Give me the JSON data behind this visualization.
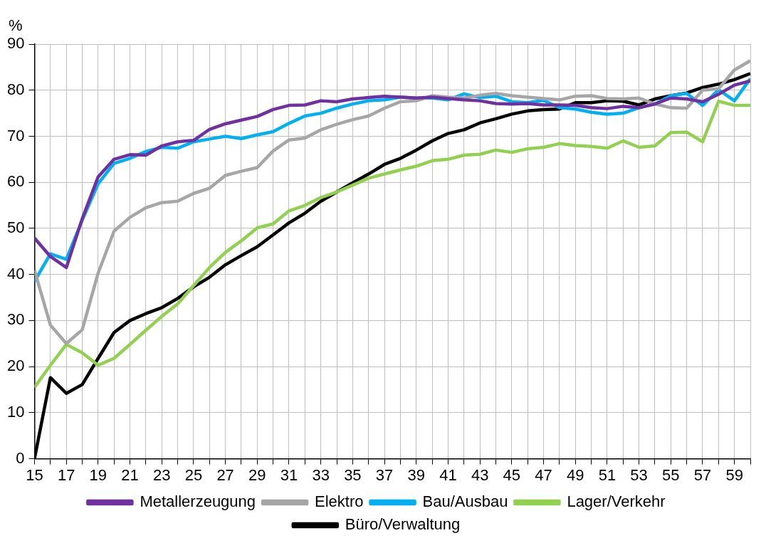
{
  "chart_data": {
    "type": "line",
    "ylabel": "%",
    "x": [
      15,
      16,
      17,
      18,
      19,
      20,
      21,
      22,
      23,
      24,
      25,
      26,
      27,
      28,
      29,
      30,
      31,
      32,
      33,
      34,
      35,
      36,
      37,
      38,
      39,
      40,
      41,
      42,
      43,
      44,
      45,
      46,
      47,
      48,
      49,
      50,
      51,
      52,
      53,
      54,
      55,
      56,
      57,
      58,
      59,
      60
    ],
    "xlim": [
      15,
      60
    ],
    "xticks": [
      15,
      {
        "value": 16,
        "label": null
      },
      17,
      {
        "value": 18,
        "label": null
      },
      19,
      {
        "value": 20,
        "label": null
      },
      21,
      {
        "value": 22,
        "label": null
      },
      23,
      {
        "value": 24,
        "label": null
      },
      25,
      {
        "value": 26,
        "label": null
      },
      27,
      {
        "value": 28,
        "label": null
      },
      29,
      {
        "value": 30,
        "label": null
      },
      31,
      {
        "value": 32,
        "label": null
      },
      33,
      {
        "value": 34,
        "label": null
      },
      35,
      {
        "value": 36,
        "label": null
      },
      37,
      {
        "value": 38,
        "label": null
      },
      39,
      {
        "value": 40,
        "label": null
      },
      41,
      {
        "value": 42,
        "label": null
      },
      43,
      {
        "value": 44,
        "label": null
      },
      45,
      {
        "value": 46,
        "label": null
      },
      47,
      {
        "value": 48,
        "label": null
      },
      49,
      {
        "value": 50,
        "label": null
      },
      51,
      {
        "value": 52,
        "label": null
      },
      53,
      {
        "value": 54,
        "label": null
      },
      55,
      {
        "value": 56,
        "label": null
      },
      57,
      {
        "value": 58,
        "label": null
      },
      59,
      {
        "value": 60,
        "label": null
      }
    ],
    "ylim": [
      0,
      90
    ],
    "yticks": [
      0,
      10,
      20,
      30,
      40,
      50,
      60,
      70,
      80,
      90
    ],
    "grid": true,
    "legend": "bottom",
    "marker": "none",
    "line_style": "solid",
    "series": [
      {
        "name": "Metallerzeugung",
        "color": "#7030a0",
        "values": [
          47.9,
          43.9,
          41.5,
          52.1,
          61.2,
          65,
          66,
          65.9,
          67.9,
          68.8,
          69.1,
          71.5,
          72.7,
          73.5,
          74.3,
          75.8,
          76.7,
          76.8,
          77.7,
          77.5,
          78.1,
          78.4,
          78.7,
          78.5,
          78.3,
          78.5,
          78.2,
          77.9,
          77.7,
          77.1,
          77,
          77.1,
          76.8,
          76.8,
          76.7,
          76.2,
          76,
          76.5,
          76.2,
          77,
          78.3,
          78.1,
          77.5,
          79.1,
          81.1,
          82
        ]
      },
      {
        "name": "Elektro",
        "color": "#a6a6a6",
        "values": [
          40.9,
          29,
          25,
          28,
          40.3,
          49.4,
          52.4,
          54.5,
          55.6,
          55.9,
          57.6,
          58.7,
          61.5,
          62.4,
          63.2,
          66.8,
          69.2,
          69.6,
          71.4,
          72.6,
          73.6,
          74.4,
          76.1,
          77.5,
          77.7,
          78.8,
          78.5,
          78.3,
          78.9,
          79.3,
          78.8,
          78.5,
          78.2,
          77.9,
          78.7,
          78.8,
          78.2,
          78.1,
          78.3,
          77,
          76.2,
          76.1,
          80,
          80.3,
          84.4,
          86.4
        ]
      },
      {
        "name": "Bau/Ausbau",
        "color": "#00b0f0",
        "values": [
          38.5,
          44.5,
          43.3,
          51.8,
          59.7,
          64.1,
          65.2,
          66.7,
          67.6,
          67.4,
          68.8,
          69.4,
          70,
          69.5,
          70.3,
          71,
          72.8,
          74.4,
          75,
          76.1,
          77,
          77.7,
          77.9,
          78.5,
          78.3,
          78.3,
          77.9,
          79.2,
          78.4,
          78.7,
          77.5,
          77.3,
          77.8,
          76.2,
          75.9,
          75.2,
          74.8,
          75,
          76.2,
          77,
          78.8,
          79.3,
          76.7,
          80.1,
          77.7,
          82.5
        ]
      },
      {
        "name": "Lager/Verkehr",
        "color": "#92d050",
        "values": [
          15.5,
          20.3,
          24.8,
          23,
          20.3,
          21.8,
          24.8,
          27.9,
          30.9,
          33.6,
          37.6,
          41.5,
          44.8,
          47.3,
          50.1,
          51,
          53.8,
          55,
          56.7,
          57.9,
          59.4,
          60.9,
          61.8,
          62.7,
          63.5,
          64.7,
          65,
          65.9,
          66.1,
          67,
          66.5,
          67.3,
          67.6,
          68.4,
          68,
          67.8,
          67.4,
          69,
          67.6,
          67.9,
          70.8,
          70.9,
          68.8,
          77.6,
          76.7,
          76.7
        ]
      },
      {
        "name": "Büro/Verwaltung",
        "color": "#000000",
        "values": [
          0,
          17.6,
          14.2,
          16.1,
          21.8,
          27.4,
          30,
          31.5,
          32.8,
          34.8,
          37.3,
          39.4,
          42.1,
          44.1,
          46,
          48.6,
          51.2,
          53.3,
          55.9,
          57.9,
          59.9,
          61.8,
          63.9,
          65.2,
          67,
          69,
          70.6,
          71.4,
          72.9,
          73.8,
          74.8,
          75.5,
          75.8,
          75.9,
          77.3,
          77.3,
          77.7,
          77.6,
          76.8,
          78.1,
          78.8,
          79.4,
          80.6,
          81.3,
          82.3,
          83.6
        ]
      }
    ]
  }
}
